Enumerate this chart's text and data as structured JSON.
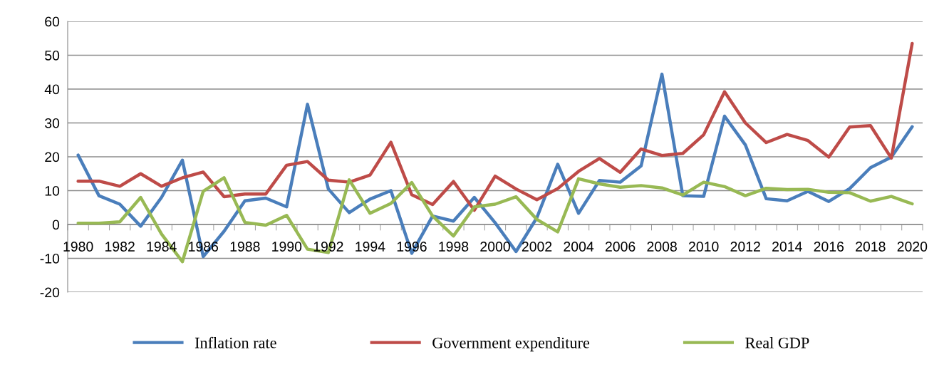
{
  "chart_data": {
    "type": "line",
    "categories": [
      "1980",
      null,
      "1982",
      null,
      "1984",
      null,
      "1986",
      null,
      "1988",
      null,
      "1990",
      null,
      "1992",
      null,
      "1994",
      null,
      "1996",
      null,
      "1998",
      null,
      "2000",
      null,
      "2002",
      null,
      "2004",
      null,
      "2006",
      null,
      "2008",
      null,
      "2010",
      null,
      "2012",
      null,
      "2014",
      null,
      "2016",
      null,
      "2018",
      null,
      "2020"
    ],
    "series": [
      {
        "name": "Inflation rate",
        "color": "#4a7ebb",
        "values": [
          20.5,
          8.5,
          6,
          -0.5,
          8,
          19,
          -9.5,
          -2,
          7,
          7.8,
          5.2,
          35.5,
          10.5,
          3.5,
          7.5,
          10,
          -8.5,
          2.5,
          1,
          8,
          0.5,
          -8,
          2,
          17.8,
          3.3,
          13,
          12.5,
          17.3,
          44.4,
          8.5,
          8.3,
          32,
          23.5,
          7.6,
          7,
          9.8,
          6.8,
          10.6,
          16.8,
          19.9,
          28.9
        ]
      },
      {
        "name": "Government expenditure",
        "color": "#be4b48",
        "values": [
          12.8,
          12.8,
          11.3,
          15,
          11.3,
          13.8,
          15.5,
          8.2,
          9,
          9,
          17.5,
          18.6,
          13.1,
          12.5,
          14.6,
          24.3,
          8.8,
          5.9,
          12.7,
          4.2,
          14.3,
          10.5,
          7.3,
          10.6,
          15.7,
          19.5,
          15.4,
          22.3,
          20.4,
          21,
          26.5,
          39.2,
          30,
          24.2,
          26.6,
          24.8,
          19.9,
          28.8,
          29.2,
          19.6,
          53.5
        ]
      },
      {
        "name": "Real GDP",
        "color": "#98b954",
        "values": [
          0.4,
          0.4,
          0.8,
          8,
          -2.8,
          -11,
          9.8,
          13.8,
          0.6,
          -0.2,
          2.7,
          -7.3,
          -8.3,
          13.2,
          3.3,
          6.2,
          12.4,
          2.5,
          -3.4,
          5.2,
          6,
          8.2,
          1.5,
          -2.2,
          13.5,
          12,
          11,
          11.5,
          10.8,
          8.7,
          12.5,
          11.2,
          8.5,
          10.7,
          10.3,
          10.4,
          9.5,
          9.4,
          6.9,
          8.3,
          6.1
        ]
      }
    ],
    "ylim": [
      -20,
      60
    ],
    "yticks": [
      -20,
      -10,
      0,
      10,
      20,
      30,
      40,
      50,
      60
    ],
    "grid": "y",
    "legend": "bottom",
    "marker": "none",
    "line_style": "solid"
  }
}
